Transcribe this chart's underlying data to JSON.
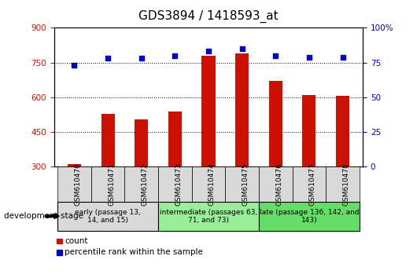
{
  "title": "GDS3894 / 1418593_at",
  "samples": [
    "GSM610470",
    "GSM610471",
    "GSM610472",
    "GSM610473",
    "GSM610474",
    "GSM610475",
    "GSM610476",
    "GSM610477",
    "GSM610478"
  ],
  "counts": [
    310,
    530,
    505,
    540,
    780,
    790,
    670,
    610,
    605
  ],
  "percentile_ranks": [
    73,
    78,
    78,
    80,
    83,
    85,
    80,
    79,
    79
  ],
  "ylim_left": [
    300,
    900
  ],
  "ylim_right": [
    0,
    100
  ],
  "yticks_left": [
    300,
    450,
    600,
    750,
    900
  ],
  "yticks_right": [
    0,
    25,
    50,
    75,
    100
  ],
  "bar_color": "#cc1100",
  "dot_color": "#0000cc",
  "groups": [
    {
      "label": "early (passage 13,\n14, and 15)",
      "start": 0,
      "end": 3,
      "color": "#d9d9d9"
    },
    {
      "label": "intermediate (passages 63,\n71, and 73)",
      "start": 3,
      "end": 6,
      "color": "#99ee99"
    },
    {
      "label": "late (passage 136, 142, and\n143)",
      "start": 6,
      "end": 9,
      "color": "#66dd66"
    }
  ],
  "dev_stage_label": "development stage",
  "legend_count_label": "count",
  "legend_pct_label": "percentile rank within the sample",
  "title_fontsize": 11,
  "tick_fontsize": 7.5,
  "label_fontsize": 7.5
}
